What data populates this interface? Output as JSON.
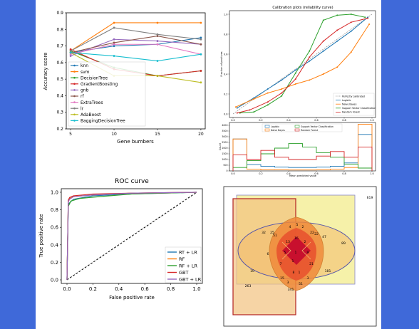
{
  "chart_data": [
    {
      "type": "line",
      "title": "",
      "xlabel": "Gene bumbers",
      "ylabel": "Accuracy score",
      "x": [
        5,
        10,
        15,
        20
      ],
      "xticks": [
        "5",
        "10",
        "15",
        "20"
      ],
      "ylim": [
        0.2,
        0.9
      ],
      "yticks": [
        "0.2",
        "0.3",
        "0.4",
        "0.5",
        "0.6",
        "0.7",
        "0.8",
        "0.9"
      ],
      "legend_position": "center-left",
      "series": [
        {
          "name": "knn",
          "color": "#1f77b4",
          "values": [
            0.66,
            0.7,
            0.71,
            0.75
          ]
        },
        {
          "name": "svm",
          "color": "#ff7f0e",
          "values": [
            0.67,
            0.84,
            0.84,
            0.84
          ]
        },
        {
          "name": "DecisionTree",
          "color": "#2ca02c",
          "values": [
            0.67,
            0.57,
            0.52,
            0.55
          ]
        },
        {
          "name": "GradientBoosting",
          "color": "#d62728",
          "values": [
            0.68,
            0.56,
            0.52,
            0.55
          ]
        },
        {
          "name": "gnb",
          "color": "#9467bd",
          "values": [
            0.64,
            0.74,
            0.73,
            0.71
          ]
        },
        {
          "name": "rf",
          "color": "#8c564b",
          "values": [
            0.66,
            0.72,
            0.76,
            0.71
          ]
        },
        {
          "name": "ExtraTrees",
          "color": "#e377c2",
          "values": [
            0.65,
            0.71,
            0.71,
            0.65
          ]
        },
        {
          "name": "lr",
          "color": "#7f7f7f",
          "values": [
            0.67,
            0.81,
            0.77,
            0.74
          ]
        },
        {
          "name": "AdaBoost",
          "color": "#bcbd22",
          "values": [
            0.66,
            0.52,
            0.52,
            0.48
          ]
        },
        {
          "name": "BaggingDecisionTree",
          "color": "#17becf",
          "values": [
            0.66,
            0.64,
            0.61,
            0.65
          ]
        }
      ]
    },
    {
      "type": "line",
      "title": "Calibration plots  (reliability curve)",
      "xlabel": "",
      "ylabel": "Fraction of positives",
      "xlim": [
        0,
        1
      ],
      "ylim": [
        0,
        1
      ],
      "xticks": [
        "0.0",
        "0.2",
        "0.4",
        "0.6",
        "0.8",
        "1.0"
      ],
      "yticks": [
        "0.0",
        "0.2",
        "0.4",
        "0.6",
        "0.8",
        "1.0"
      ],
      "legend_position": "lower-right",
      "reference": {
        "name": "Perfectly calibrated",
        "color": "#999999"
      },
      "series": [
        {
          "name": "Logistic",
          "color": "#1f77b4",
          "x": [
            0.03,
            0.15,
            0.25,
            0.35,
            0.45,
            0.55,
            0.65,
            0.75,
            0.85,
            0.97
          ],
          "y": [
            0.06,
            0.16,
            0.25,
            0.34,
            0.44,
            0.53,
            0.63,
            0.73,
            0.83,
            0.97
          ]
        },
        {
          "name": "Naive Bayes",
          "color": "#ff7f0e",
          "x": [
            0.02,
            0.15,
            0.25,
            0.35,
            0.45,
            0.55,
            0.65,
            0.75,
            0.85,
            0.98
          ],
          "y": [
            0.07,
            0.15,
            0.21,
            0.25,
            0.3,
            0.34,
            0.4,
            0.47,
            0.62,
            0.9
          ]
        },
        {
          "name": "Support Vector Classification",
          "color": "#2ca02c",
          "x": [
            0.05,
            0.15,
            0.25,
            0.35,
            0.45,
            0.55,
            0.65,
            0.75,
            0.85,
            0.95
          ],
          "y": [
            0.01,
            0.02,
            0.09,
            0.18,
            0.41,
            0.63,
            0.94,
            0.99,
            1.0,
            0.97
          ]
        },
        {
          "name": "Random Forest",
          "color": "#d62728",
          "x": [
            0.03,
            0.12,
            0.25,
            0.35,
            0.45,
            0.55,
            0.65,
            0.75,
            0.85,
            0.97
          ],
          "y": [
            0.01,
            0.04,
            0.12,
            0.21,
            0.35,
            0.57,
            0.73,
            0.84,
            0.92,
            0.96
          ]
        }
      ]
    },
    {
      "type": "bar",
      "title": "",
      "xlabel": "Mean predicted value",
      "ylabel": "Count",
      "xlim": [
        0,
        1
      ],
      "ylim": [
        0,
        4000
      ],
      "xticks": [
        "0.0",
        "0.2",
        "0.4",
        "0.6",
        "0.8",
        "1.0"
      ],
      "yticks": [
        "0",
        "500",
        "1000",
        "1500",
        "2000",
        "2500",
        "3000",
        "3500",
        "4000"
      ],
      "bins": 10,
      "legend_position": "top-center",
      "series": [
        {
          "name": "Logistic",
          "color": "#1f77b4",
          "values": [
            2800,
            550,
            400,
            330,
            300,
            300,
            330,
            400,
            700,
            3200
          ]
        },
        {
          "name": "Naive Bayes",
          "color": "#ff7f0e",
          "values": [
            2800,
            150,
            100,
            90,
            80,
            80,
            90,
            150,
            300,
            4100
          ]
        },
        {
          "name": "Support Vector Classification",
          "color": "#2ca02c",
          "values": [
            300,
            900,
            1500,
            2000,
            2400,
            2100,
            1600,
            1200,
            600,
            250
          ]
        },
        {
          "name": "Random Forest",
          "color": "#d62728",
          "values": [
            1400,
            1000,
            1800,
            1200,
            1000,
            1000,
            1300,
            1700,
            1200,
            2100
          ]
        }
      ]
    },
    {
      "type": "line",
      "title": "ROC curve",
      "xlabel": "False positive rate",
      "ylabel": "True positive rate",
      "xlim": [
        0,
        1
      ],
      "ylim": [
        0,
        1
      ],
      "xticks": [
        "0.0",
        "0.2",
        "0.4",
        "0.6",
        "0.8",
        "1.0"
      ],
      "yticks": [
        "0.0",
        "0.2",
        "0.4",
        "0.6",
        "0.8",
        "1.0"
      ],
      "legend_position": "lower-right",
      "series": [
        {
          "name": "RT + LR",
          "color": "#1f77b4",
          "x": [
            0,
            0.01,
            0.02,
            0.05,
            0.2,
            0.5,
            1
          ],
          "y": [
            0,
            0.86,
            0.88,
            0.92,
            0.96,
            0.98,
            1
          ]
        },
        {
          "name": "RF",
          "color": "#ff7f0e",
          "x": [
            0,
            0.01,
            0.02,
            0.05,
            0.2,
            0.5,
            1
          ],
          "y": [
            0,
            0.9,
            0.93,
            0.95,
            0.97,
            0.99,
            1
          ]
        },
        {
          "name": "RF + LR",
          "color": "#2ca02c",
          "x": [
            0,
            0.01,
            0.03,
            0.1,
            0.25,
            0.5,
            1
          ],
          "y": [
            0,
            0.84,
            0.9,
            0.93,
            0.95,
            0.98,
            1
          ]
        },
        {
          "name": "GBT",
          "color": "#d62728",
          "x": [
            0,
            0.01,
            0.02,
            0.05,
            0.2,
            0.5,
            1
          ],
          "y": [
            0,
            0.91,
            0.94,
            0.96,
            0.98,
            0.99,
            1
          ]
        },
        {
          "name": "GBT + LR",
          "color": "#9467bd",
          "x": [
            0,
            0.01,
            0.02,
            0.05,
            0.2,
            0.5,
            1
          ],
          "y": [
            0,
            0.89,
            0.92,
            0.95,
            0.97,
            0.99,
            1
          ]
        }
      ],
      "reference_color": "#000000"
    }
  ],
  "venn": {
    "labels": [
      "619",
      "32",
      "25",
      "4",
      "5",
      "2",
      "22",
      "22",
      "47",
      "89",
      "10",
      "181",
      "263",
      "51",
      "13",
      "16",
      "2",
      "5",
      "1",
      "9",
      "341",
      "6",
      "7",
      "51",
      "21",
      "15",
      "3",
      "3",
      "8",
      "1",
      "1"
    ],
    "colors": {
      "square": "#f2eb94",
      "square_edge": "#7a7ac0",
      "rect": "#f1c07a",
      "rect_edge": "#b22222",
      "ellipse_edge": "#6060b0",
      "core": "#c8102e",
      "mid": "#e86a3a"
    }
  }
}
